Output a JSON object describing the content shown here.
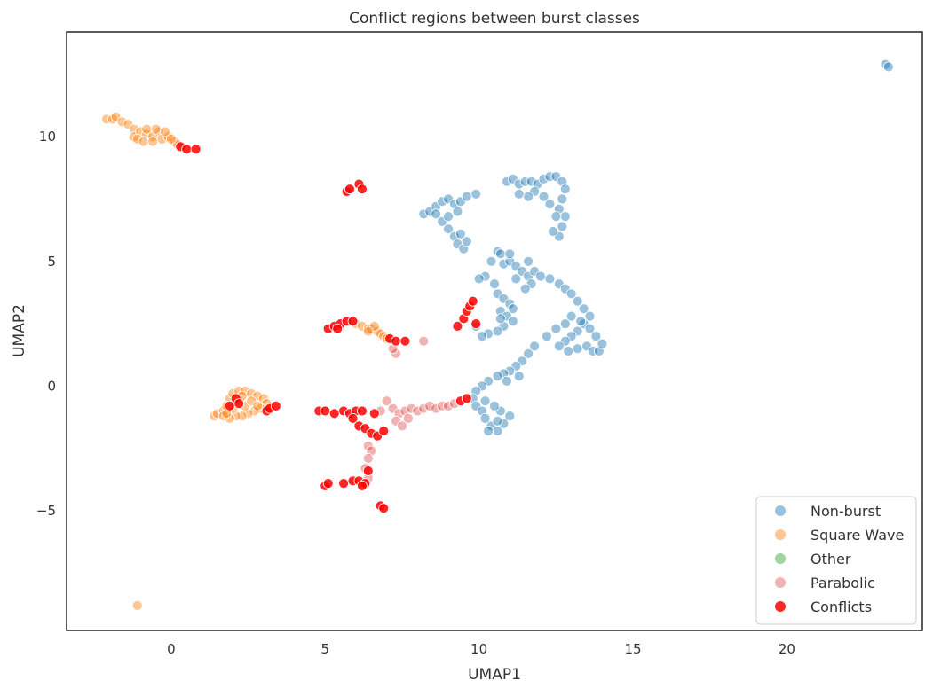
{
  "chart_data": {
    "type": "scatter",
    "title": "Conflict regions between burst classes",
    "xlabel": "UMAP1",
    "ylabel": "UMAP2",
    "xlim": [
      -3.4,
      24.4
    ],
    "ylim": [
      -9.8,
      14.2
    ],
    "xticks": [
      0,
      5,
      10,
      15,
      20
    ],
    "xtick_labels": [
      "0",
      "5",
      "10",
      "15",
      "20"
    ],
    "yticks": [
      10,
      5,
      0,
      -5
    ],
    "ytick_labels": [
      "10",
      "5",
      "0",
      "−5"
    ],
    "grid": false,
    "legend_position": "bottom-right",
    "series": [
      {
        "name": "Non-burst",
        "color": "#1f77b4",
        "opacity": 0.45,
        "points": [
          [
            23.2,
            12.9
          ],
          [
            23.3,
            12.8
          ],
          [
            8.2,
            6.9
          ],
          [
            8.4,
            7.0
          ],
          [
            8.6,
            7.2
          ],
          [
            8.8,
            7.4
          ],
          [
            9.0,
            7.5
          ],
          [
            9.2,
            7.3
          ],
          [
            9.4,
            7.4
          ],
          [
            9.6,
            7.6
          ],
          [
            9.9,
            7.7
          ],
          [
            8.6,
            6.9
          ],
          [
            8.8,
            6.6
          ],
          [
            9.0,
            6.3
          ],
          [
            9.2,
            6.0
          ],
          [
            9.3,
            5.7
          ],
          [
            9.5,
            5.5
          ],
          [
            9.6,
            5.8
          ],
          [
            9.4,
            6.1
          ],
          [
            9.0,
            6.8
          ],
          [
            9.3,
            7.0
          ],
          [
            10.9,
            8.2
          ],
          [
            11.1,
            8.3
          ],
          [
            11.3,
            8.1
          ],
          [
            11.5,
            8.2
          ],
          [
            11.7,
            8.2
          ],
          [
            11.9,
            8.1
          ],
          [
            12.1,
            8.3
          ],
          [
            12.3,
            8.4
          ],
          [
            12.5,
            8.4
          ],
          [
            12.7,
            8.2
          ],
          [
            12.8,
            7.9
          ],
          [
            12.7,
            7.5
          ],
          [
            12.6,
            7.1
          ],
          [
            12.8,
            6.8
          ],
          [
            12.7,
            6.4
          ],
          [
            12.6,
            6.0
          ],
          [
            12.4,
            6.2
          ],
          [
            12.5,
            6.8
          ],
          [
            12.3,
            7.3
          ],
          [
            12.1,
            7.6
          ],
          [
            11.8,
            7.8
          ],
          [
            11.6,
            7.6
          ],
          [
            11.3,
            7.7
          ],
          [
            10.6,
            5.4
          ],
          [
            10.7,
            5.3
          ],
          [
            10.4,
            5.0
          ],
          [
            10.8,
            4.9
          ],
          [
            11.0,
            5.0
          ],
          [
            11.2,
            4.8
          ],
          [
            11.4,
            4.6
          ],
          [
            11.6,
            4.4
          ],
          [
            11.8,
            4.6
          ],
          [
            12.0,
            4.4
          ],
          [
            11.7,
            4.1
          ],
          [
            11.5,
            3.9
          ],
          [
            11.2,
            4.3
          ],
          [
            10.2,
            4.4
          ],
          [
            10.0,
            4.3
          ],
          [
            10.5,
            4.1
          ],
          [
            11.0,
            5.3
          ],
          [
            11.6,
            5.0
          ],
          [
            12.3,
            4.3
          ],
          [
            12.6,
            4.1
          ],
          [
            12.8,
            3.9
          ],
          [
            13.0,
            3.7
          ],
          [
            13.2,
            3.4
          ],
          [
            13.4,
            3.1
          ],
          [
            13.6,
            2.8
          ],
          [
            13.4,
            2.5
          ],
          [
            13.2,
            2.2
          ],
          [
            13.0,
            2.0
          ],
          [
            12.8,
            1.8
          ],
          [
            12.6,
            1.6
          ],
          [
            12.9,
            1.4
          ],
          [
            13.2,
            1.5
          ],
          [
            13.5,
            1.6
          ],
          [
            13.7,
            1.4
          ],
          [
            13.9,
            1.4
          ],
          [
            14.0,
            1.7
          ],
          [
            13.8,
            2.0
          ],
          [
            13.6,
            2.3
          ],
          [
            13.3,
            2.6
          ],
          [
            13.0,
            2.8
          ],
          [
            12.8,
            2.5
          ],
          [
            12.5,
            2.3
          ],
          [
            12.2,
            2.0
          ],
          [
            10.6,
            3.7
          ],
          [
            10.8,
            3.5
          ],
          [
            11.0,
            3.3
          ],
          [
            10.7,
            3.0
          ],
          [
            10.9,
            2.8
          ],
          [
            11.1,
            2.6
          ],
          [
            10.8,
            2.4
          ],
          [
            10.6,
            2.2
          ],
          [
            10.3,
            2.1
          ],
          [
            10.1,
            2.0
          ],
          [
            9.9,
            2.4
          ],
          [
            10.7,
            2.7
          ],
          [
            11.1,
            3.1
          ],
          [
            11.8,
            1.6
          ],
          [
            11.6,
            1.3
          ],
          [
            11.4,
            1.0
          ],
          [
            11.2,
            0.8
          ],
          [
            11.0,
            0.6
          ],
          [
            10.8,
            0.5
          ],
          [
            10.6,
            0.4
          ],
          [
            10.3,
            0.2
          ],
          [
            10.1,
            0.0
          ],
          [
            9.9,
            -0.2
          ],
          [
            9.8,
            -0.5
          ],
          [
            9.9,
            -0.8
          ],
          [
            10.1,
            -1.0
          ],
          [
            10.2,
            -1.3
          ],
          [
            10.4,
            -1.6
          ],
          [
            10.6,
            -1.8
          ],
          [
            10.8,
            -1.5
          ],
          [
            11.0,
            -1.2
          ],
          [
            10.7,
            -1.0
          ],
          [
            10.5,
            -0.8
          ],
          [
            10.2,
            -0.6
          ],
          [
            10.6,
            -1.4
          ],
          [
            10.3,
            -1.8
          ],
          [
            10.9,
            0.2
          ],
          [
            11.3,
            0.4
          ]
        ]
      },
      {
        "name": "Square Wave",
        "color": "#ff7f0e",
        "opacity": 0.45,
        "points": [
          [
            -2.1,
            10.7
          ],
          [
            -1.9,
            10.7
          ],
          [
            -1.8,
            10.8
          ],
          [
            -1.6,
            10.6
          ],
          [
            -1.4,
            10.5
          ],
          [
            -1.2,
            10.3
          ],
          [
            -1.2,
            10.0
          ],
          [
            -1.0,
            10.2
          ],
          [
            -0.8,
            10.1
          ],
          [
            -0.6,
            10.0
          ],
          [
            -0.4,
            10.2
          ],
          [
            -0.3,
            9.9
          ],
          [
            -0.1,
            10.0
          ],
          [
            0.1,
            9.8
          ],
          [
            0.2,
            9.7
          ],
          [
            -0.8,
            10.3
          ],
          [
            -0.5,
            10.3
          ],
          [
            -0.2,
            10.2
          ],
          [
            -1.1,
            9.9
          ],
          [
            -0.9,
            9.8
          ],
          [
            -0.6,
            9.8
          ],
          [
            0.0,
            9.9
          ],
          [
            6.0,
            2.5
          ],
          [
            6.2,
            2.4
          ],
          [
            6.4,
            2.3
          ],
          [
            6.5,
            2.3
          ],
          [
            6.7,
            2.2
          ],
          [
            6.8,
            2.1
          ],
          [
            6.6,
            2.4
          ],
          [
            6.4,
            2.2
          ],
          [
            6.9,
            2.0
          ],
          [
            7.0,
            1.9
          ],
          [
            1.4,
            -1.2
          ],
          [
            1.5,
            -1.1
          ],
          [
            1.7,
            -1.0
          ],
          [
            1.8,
            -0.8
          ],
          [
            1.9,
            -0.5
          ],
          [
            2.0,
            -0.3
          ],
          [
            2.2,
            -0.2
          ],
          [
            2.4,
            -0.2
          ],
          [
            2.6,
            -0.3
          ],
          [
            2.8,
            -0.4
          ],
          [
            3.0,
            -0.5
          ],
          [
            3.1,
            -0.7
          ],
          [
            2.9,
            -0.9
          ],
          [
            2.7,
            -1.0
          ],
          [
            2.5,
            -1.1
          ],
          [
            2.3,
            -1.2
          ],
          [
            2.1,
            -1.2
          ],
          [
            1.9,
            -1.3
          ],
          [
            1.7,
            -1.2
          ],
          [
            2.2,
            -0.6
          ],
          [
            2.4,
            -0.8
          ],
          [
            2.6,
            -0.6
          ],
          [
            2.8,
            -0.8
          ],
          [
            2.0,
            -0.9
          ],
          [
            1.8,
            -1.1
          ],
          [
            2.3,
            -0.4
          ],
          [
            -1.1,
            -8.8
          ]
        ]
      },
      {
        "name": "Other",
        "color": "#2ca02c",
        "opacity": 0.45,
        "points": []
      },
      {
        "name": "Parabolic",
        "color": "#d62728",
        "opacity": 0.35,
        "points": [
          [
            7.0,
            -0.6
          ],
          [
            7.2,
            -0.9
          ],
          [
            7.4,
            -1.1
          ],
          [
            7.6,
            -1.0
          ],
          [
            7.8,
            -0.9
          ],
          [
            8.0,
            -1.0
          ],
          [
            8.2,
            -0.9
          ],
          [
            8.4,
            -0.8
          ],
          [
            8.6,
            -0.9
          ],
          [
            8.8,
            -0.8
          ],
          [
            9.0,
            -0.8
          ],
          [
            9.2,
            -0.7
          ],
          [
            7.3,
            -1.4
          ],
          [
            7.5,
            -1.6
          ],
          [
            6.8,
            -1.0
          ],
          [
            7.7,
            -1.3
          ],
          [
            6.4,
            -2.4
          ],
          [
            6.5,
            -2.6
          ],
          [
            6.4,
            -2.9
          ],
          [
            6.3,
            -3.3
          ],
          [
            6.4,
            -3.7
          ],
          [
            7.3,
            1.3
          ],
          [
            7.2,
            1.5
          ],
          [
            8.2,
            1.8
          ]
        ]
      },
      {
        "name": "Conflicts",
        "color": "#ff0000",
        "opacity": 0.85,
        "points": [
          [
            0.3,
            9.6
          ],
          [
            0.5,
            9.5
          ],
          [
            0.8,
            9.5
          ],
          [
            5.7,
            7.8
          ],
          [
            5.8,
            7.9
          ],
          [
            6.1,
            8.1
          ],
          [
            6.2,
            7.9
          ],
          [
            5.1,
            2.3
          ],
          [
            5.3,
            2.4
          ],
          [
            5.5,
            2.5
          ],
          [
            5.7,
            2.6
          ],
          [
            5.9,
            2.6
          ],
          [
            5.4,
            2.3
          ],
          [
            7.1,
            1.9
          ],
          [
            7.3,
            1.8
          ],
          [
            7.6,
            1.8
          ],
          [
            9.3,
            2.4
          ],
          [
            9.5,
            2.7
          ],
          [
            9.6,
            3.0
          ],
          [
            9.7,
            3.2
          ],
          [
            9.8,
            3.4
          ],
          [
            9.9,
            2.5
          ],
          [
            2.1,
            -0.5
          ],
          [
            1.9,
            -0.8
          ],
          [
            2.2,
            -0.7
          ],
          [
            3.1,
            -1.0
          ],
          [
            3.2,
            -0.9
          ],
          [
            3.4,
            -0.8
          ],
          [
            4.8,
            -1.0
          ],
          [
            5.0,
            -1.0
          ],
          [
            5.3,
            -1.1
          ],
          [
            5.6,
            -1.0
          ],
          [
            5.8,
            -1.1
          ],
          [
            6.0,
            -1.0
          ],
          [
            6.2,
            -1.0
          ],
          [
            6.6,
            -1.1
          ],
          [
            5.9,
            -1.3
          ],
          [
            9.4,
            -0.6
          ],
          [
            9.6,
            -0.5
          ],
          [
            6.1,
            -1.6
          ],
          [
            6.3,
            -1.7
          ],
          [
            6.5,
            -1.9
          ],
          [
            6.7,
            -2.0
          ],
          [
            6.9,
            -1.8
          ],
          [
            5.0,
            -4.0
          ],
          [
            5.1,
            -3.9
          ],
          [
            5.6,
            -3.9
          ],
          [
            5.9,
            -3.8
          ],
          [
            6.1,
            -3.8
          ],
          [
            6.3,
            -3.9
          ],
          [
            6.4,
            -3.4
          ],
          [
            6.2,
            -4.0
          ],
          [
            6.8,
            -4.8
          ],
          [
            6.9,
            -4.9
          ]
        ]
      }
    ]
  }
}
